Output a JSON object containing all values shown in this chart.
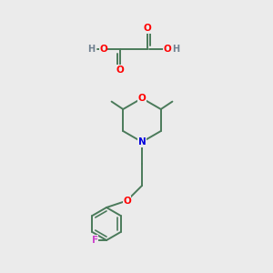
{
  "bg_color": "#ebebeb",
  "atom_colors": {
    "O": "#ff0000",
    "N": "#0000dd",
    "F": "#cc44cc",
    "C": "#4a7a5a",
    "H": "#708090"
  },
  "bond_color": "#4a7a5a",
  "bond_width": 1.4
}
